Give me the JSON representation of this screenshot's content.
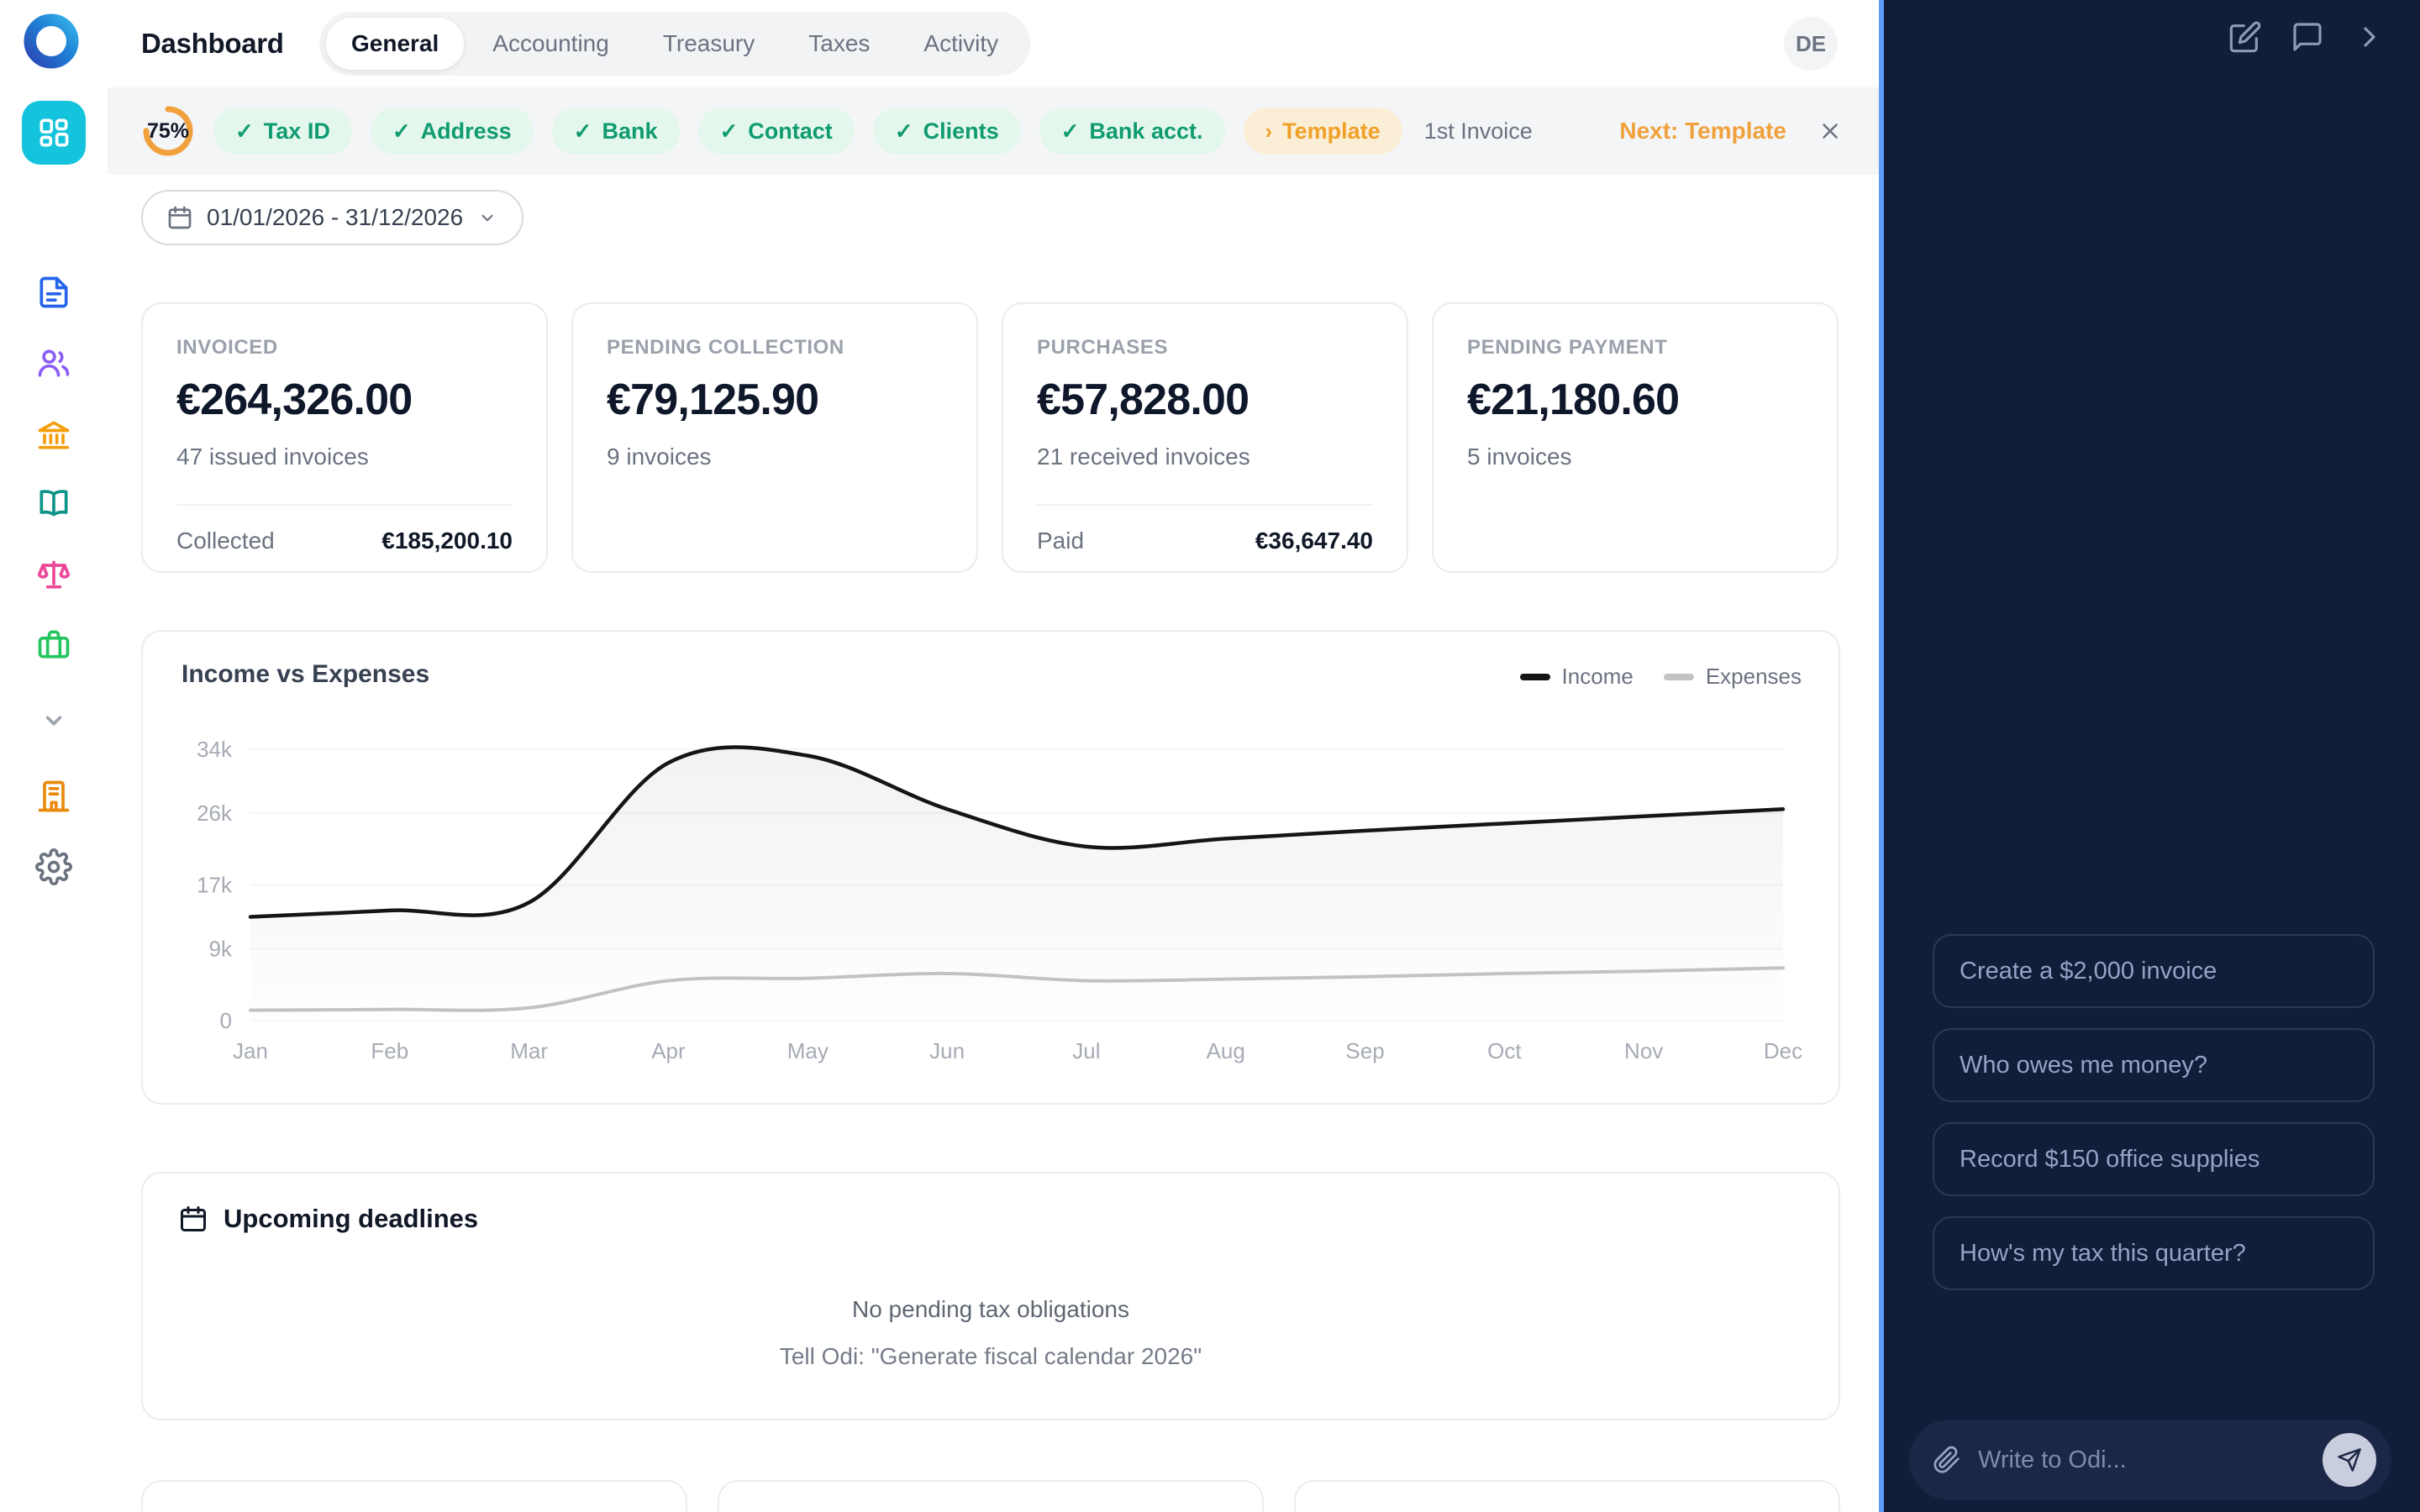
{
  "topbar": {
    "title": "Dashboard",
    "tabs": [
      {
        "label": "General",
        "active": true
      },
      {
        "label": "Accounting",
        "active": false
      },
      {
        "label": "Treasury",
        "active": false
      },
      {
        "label": "Taxes",
        "active": false
      },
      {
        "label": "Activity",
        "active": false
      }
    ],
    "avatar": "DE"
  },
  "onboarding": {
    "progress_label": "75%",
    "progress_percent": 75,
    "completed_steps": [
      "Tax ID",
      "Address",
      "Bank",
      "Contact",
      "Clients",
      "Bank acct."
    ],
    "current_step": "Template",
    "upcoming_step": "1st Invoice",
    "next_hint": "Next: Template"
  },
  "filters": {
    "date_range": "01/01/2026 - 31/12/2026"
  },
  "stats": [
    {
      "label": "INVOICED",
      "value": "€264,326.00",
      "sub": "47 issued invoices",
      "footer_label": "Collected",
      "footer_value": "€185,200.10"
    },
    {
      "label": "PENDING COLLECTION",
      "value": "€79,125.90",
      "sub": "9 invoices"
    },
    {
      "label": "PURCHASES",
      "value": "€57,828.00",
      "sub": "21 received invoices",
      "footer_label": "Paid",
      "footer_value": "€36,647.40"
    },
    {
      "label": "PENDING PAYMENT",
      "value": "€21,180.60",
      "sub": "5 invoices"
    }
  ],
  "chart_data": {
    "type": "line",
    "title": "Income vs Expenses",
    "categories": [
      "Jan",
      "Feb",
      "Mar",
      "Apr",
      "May",
      "Jun",
      "Jul",
      "Aug",
      "Sep",
      "Oct",
      "Nov",
      "Dec"
    ],
    "series": [
      {
        "name": "Income",
        "color": "#151515",
        "values": [
          13.0,
          13.8,
          14.8,
          32.3,
          33.2,
          26.5,
          21.8,
          22.8,
          23.8,
          24.7,
          25.6,
          26.5
        ]
      },
      {
        "name": "Expenses",
        "color": "#c2c2c2",
        "values": [
          1.3,
          1.4,
          1.6,
          5.0,
          5.3,
          5.9,
          5.0,
          5.2,
          5.5,
          5.9,
          6.2,
          6.6
        ]
      }
    ],
    "unit": "k (thousands of €)",
    "ylim": [
      0,
      34
    ],
    "yticks": [
      [
        34,
        "34k"
      ],
      [
        26,
        "26k"
      ],
      [
        17,
        "17k"
      ],
      [
        9,
        "9k"
      ],
      [
        0,
        "0"
      ]
    ],
    "grid": "faint horizontal",
    "legend_position": "top-right",
    "area_fill_under": "Income"
  },
  "deadlines": {
    "title": "Upcoming deadlines",
    "empty_line1": "No pending tax obligations",
    "empty_line2": "Tell Odi: \"Generate fiscal calendar 2026\""
  },
  "assistant": {
    "suggestions": [
      {
        "label": "Create a $2,000 invoice"
      },
      {
        "label": "Who owes me money?"
      },
      {
        "label": "Record $150 office supplies"
      },
      {
        "label": "How's my tax this quarter?"
      }
    ],
    "input_placeholder": "Write to Odi..."
  },
  "icons": {
    "check": "✓",
    "step_chevron": "›"
  },
  "colors": {
    "accent_cyan": "#14c4dc",
    "accent_orange": "#f0a13c",
    "success_green": "#0f9b70",
    "panel_navy": "#121d3a",
    "separator_blue": "#5d9cf8",
    "income_line": "#151515",
    "expenses_line": "#c2c2c2"
  }
}
